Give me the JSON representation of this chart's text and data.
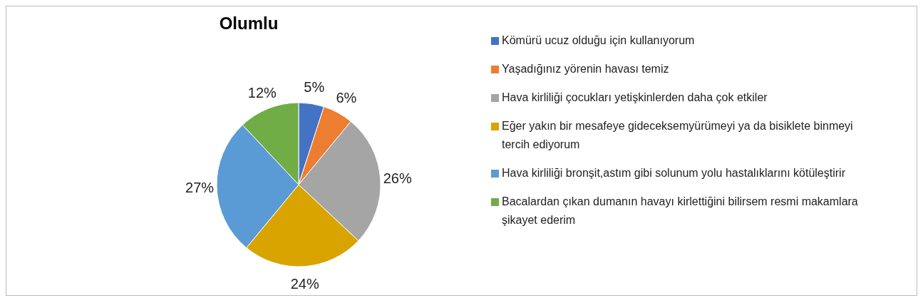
{
  "chart_data": {
    "type": "pie",
    "title": "Olumlu",
    "categories": [
      "Kömürü ucuz olduğu için kullanıyorum",
      "Yaşadığınız yörenin havası temiz",
      "Hava kirliliği çocukları yetişkinlerden daha çok etkiler",
      "Eğer yakın bir mesafeye gideceksemyürümeyi ya da bisiklete binmeyi tercih ediyorum",
      "Hava kirliliği bronşit,astım gibi solunum yolu hastalıklarını kötüleştirir",
      "Bacalardan çıkan dumanın havayı kirlettiğini bilirsem resmi makamlara şikayet ederim"
    ],
    "values": [
      5,
      6,
      26,
      24,
      27,
      12
    ],
    "value_labels": [
      "5%",
      "6%",
      "26%",
      "24%",
      "27%",
      "12%"
    ],
    "colors": [
      "#4472c4",
      "#ed7d31",
      "#a5a5a5",
      "#d9a400",
      "#5b9bd5",
      "#70ad47"
    ],
    "legend": "right"
  }
}
